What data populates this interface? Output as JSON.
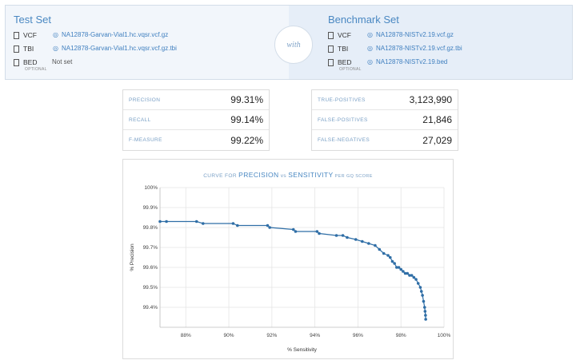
{
  "test_set": {
    "title": "Test Set",
    "rows": [
      {
        "label": "VCF",
        "sublabel": "",
        "value": "NA12878-Garvan-Vial1.hc.vqsr.vcf.gz",
        "linked": true
      },
      {
        "label": "TBI",
        "sublabel": "",
        "value": "NA12878-Garvan-Vial1.hc.vqsr.vcf.gz.tbi",
        "linked": true
      },
      {
        "label": "BED",
        "sublabel": "OPTIONAL",
        "value": "Not set",
        "linked": false
      }
    ]
  },
  "with_label": "with",
  "benchmark_set": {
    "title": "Benchmark Set",
    "rows": [
      {
        "label": "VCF",
        "sublabel": "",
        "value": "NA12878-NISTv2.19.vcf.gz",
        "linked": true
      },
      {
        "label": "TBI",
        "sublabel": "",
        "value": "NA12878-NISTv2.19.vcf.gz.tbi",
        "linked": true
      },
      {
        "label": "BED",
        "sublabel": "OPTIONAL",
        "value": "NA12878-NISTv2.19.bed",
        "linked": true
      }
    ]
  },
  "metrics": [
    {
      "label": "PRECISION",
      "value": "99.31%"
    },
    {
      "label": "RECALL",
      "value": "99.14%"
    },
    {
      "label": "F-MEASURE",
      "value": "99.22%"
    }
  ],
  "counts": [
    {
      "label": "TRUE-POSITIVES",
      "value": "3,123,990"
    },
    {
      "label": "FALSE-POSITIVES",
      "value": "21,846"
    },
    {
      "label": "FALSE-NEGATIVES",
      "value": "27,029"
    }
  ],
  "icons": {
    "file": "file-icon",
    "link": "link-icon"
  },
  "colors": {
    "accent": "#4a88c2",
    "series": "#2f6ea6",
    "grid": "#e5e5e5"
  },
  "chart_data": {
    "type": "line",
    "title_parts": {
      "prefix": "CURVE FOR ",
      "precision": "PRECISION",
      "vs": " vs ",
      "sensitivity": "SENSITIVITY",
      "suffix": " PER GQ SCORE"
    },
    "xlabel": "% Sensitivity",
    "ylabel": "% Precision",
    "xlim": [
      86.8,
      100
    ],
    "ylim": [
      99.3,
      100
    ],
    "x_ticks": [
      88,
      90,
      92,
      94,
      96,
      98,
      100
    ],
    "x_tick_labels": [
      "88%",
      "90%",
      "92%",
      "94%",
      "96%",
      "98%",
      "100%"
    ],
    "y_ticks": [
      99.4,
      99.5,
      99.6,
      99.7,
      99.8,
      99.9,
      100
    ],
    "y_tick_labels": [
      "99.4%",
      "99.5%",
      "99.6%",
      "99.7%",
      "99.8%",
      "99.9%",
      "100%"
    ],
    "grid": true,
    "series": [
      {
        "x": [
          86.8,
          87.1,
          88.5,
          88.8,
          90.2,
          90.4,
          91.8,
          91.9,
          93.0,
          93.1,
          94.1,
          94.2,
          95.0,
          95.3,
          95.5,
          95.9,
          96.2,
          96.5,
          96.8,
          97.0,
          97.2,
          97.4,
          97.5,
          97.6,
          97.7,
          97.8,
          97.9,
          98.0,
          98.1,
          98.2,
          98.3,
          98.4,
          98.5,
          98.6,
          98.7,
          98.8,
          98.9,
          98.95,
          99.0,
          99.05,
          99.1,
          99.12,
          99.14,
          99.15
        ],
        "y": [
          99.83,
          99.83,
          99.83,
          99.82,
          99.82,
          99.81,
          99.81,
          99.8,
          99.79,
          99.78,
          99.78,
          99.77,
          99.76,
          99.76,
          99.75,
          99.74,
          99.73,
          99.72,
          99.71,
          99.69,
          99.67,
          99.66,
          99.65,
          99.63,
          99.62,
          99.6,
          99.6,
          99.59,
          99.58,
          99.57,
          99.57,
          99.56,
          99.56,
          99.55,
          99.54,
          99.52,
          99.5,
          99.48,
          99.46,
          99.43,
          99.4,
          99.38,
          99.36,
          99.34
        ]
      }
    ]
  }
}
